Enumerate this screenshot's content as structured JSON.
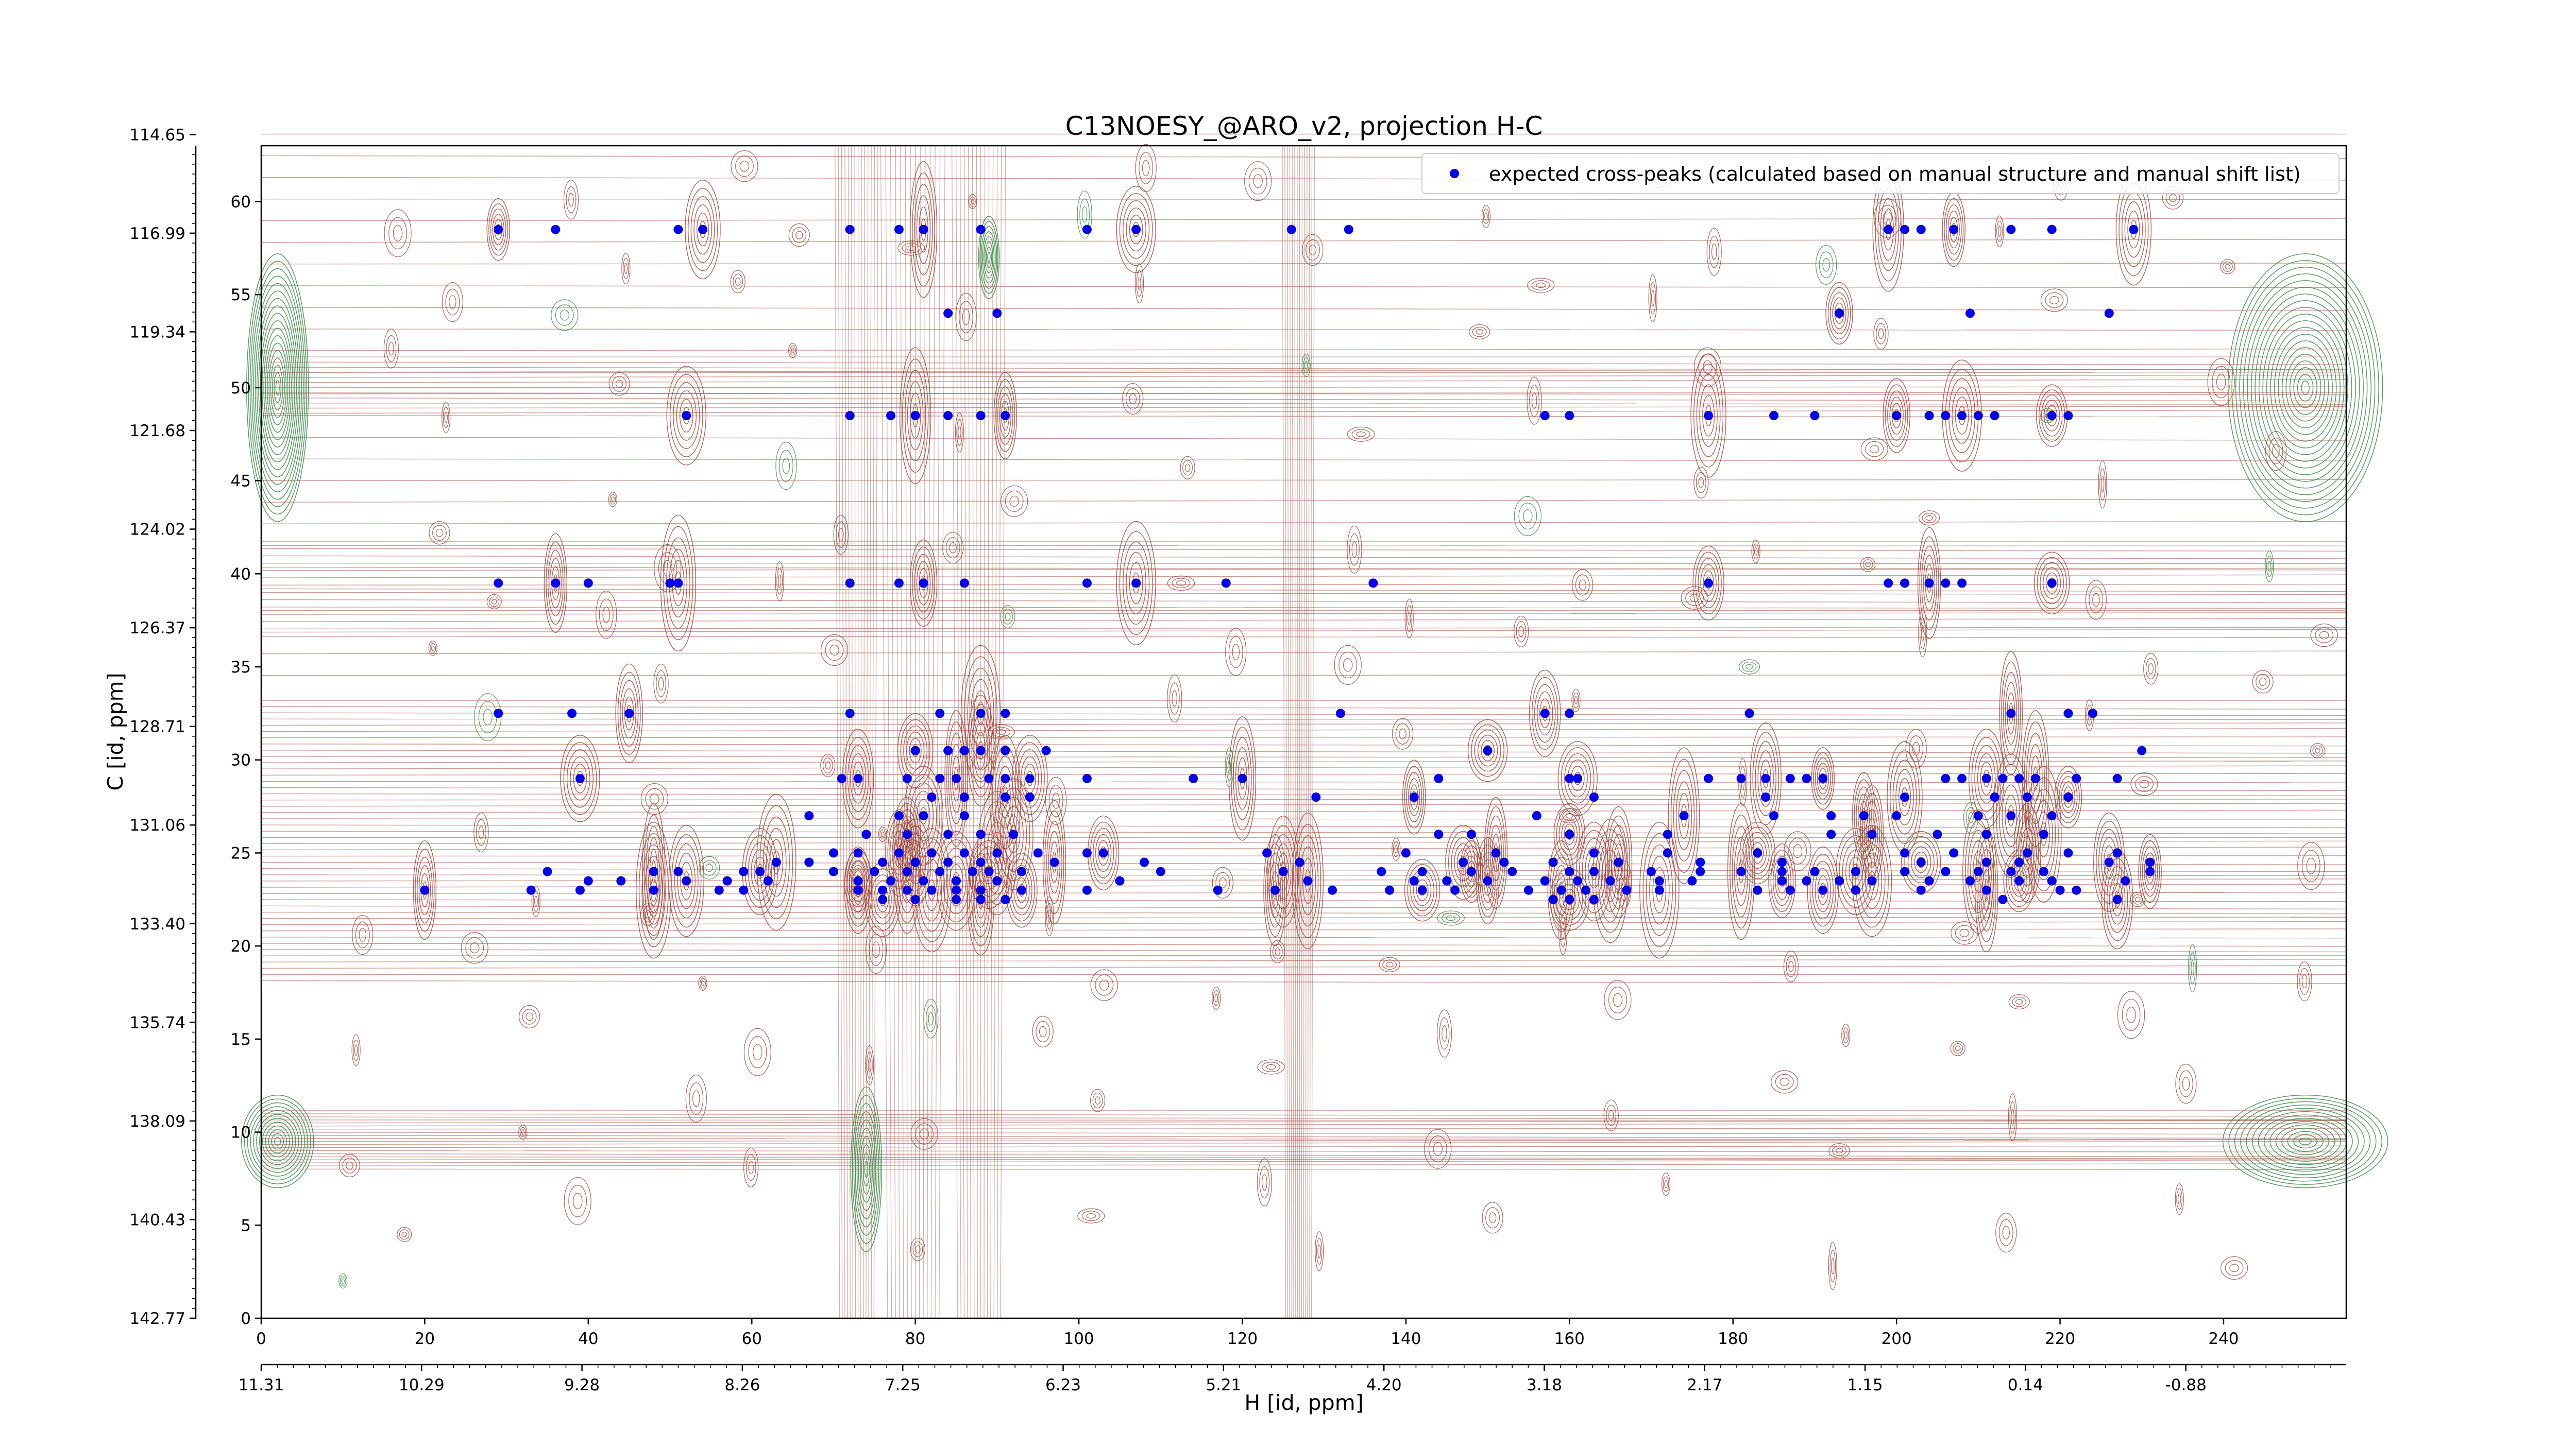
{
  "chart_data": {
    "type": "scatter",
    "title": "C13NOESY_@ARO_v2, projection H-C",
    "xlabel": "H [id, ppm]",
    "ylabel": "C [id, ppm]",
    "xlim": [
      0,
      255
    ],
    "ylim": [
      0,
      63
    ],
    "x_index_ticks": [
      "0",
      "20",
      "40",
      "60",
      "80",
      "100",
      "120",
      "140",
      "160",
      "180",
      "200",
      "220",
      "240"
    ],
    "x_index_tick_values": [
      0,
      20,
      40,
      60,
      80,
      100,
      120,
      140,
      160,
      180,
      200,
      220,
      240
    ],
    "x_ppm_ticks": [
      "11.31",
      "10.29",
      "9.28",
      "8.26",
      "7.25",
      "6.23",
      "5.21",
      "4.20",
      "3.18",
      "2.17",
      "1.15",
      "0.14",
      "-0.88"
    ],
    "y_index_ticks": [
      "0",
      "5",
      "10",
      "15",
      "20",
      "25",
      "30",
      "35",
      "40",
      "45",
      "50",
      "55",
      "60"
    ],
    "y_index_tick_values": [
      0,
      5,
      10,
      15,
      20,
      25,
      30,
      35,
      40,
      45,
      50,
      55,
      60
    ],
    "y_ppm_ticks": [
      "142.77",
      "140.43",
      "138.09",
      "135.74",
      "133.40",
      "131.06",
      "128.71",
      "126.37",
      "124.02",
      "121.68",
      "119.34",
      "116.99",
      "114.65"
    ],
    "y_ppm_tick_values": [
      0,
      5.3,
      10.6,
      15.9,
      21.2,
      26.5,
      31.8,
      37.1,
      42.4,
      47.7,
      53.0,
      58.3,
      63.6
    ],
    "legend": {
      "position": "top-right",
      "entries": [
        "expected cross-peaks (calculated based on manual structure and manual shift list)"
      ]
    },
    "colors": {
      "points": "#0000ee",
      "positive_contours": "#a0453a",
      "negative_contours": "#3a8a48"
    },
    "series": [
      {
        "name": "expected cross-peaks (calculated based on manual structure and manual shift list)",
        "points": [
          [
            29,
            58.5
          ],
          [
            36,
            58.5
          ],
          [
            51,
            58.5
          ],
          [
            54,
            58.5
          ],
          [
            72,
            58.5
          ],
          [
            78,
            58.5
          ],
          [
            81,
            58.5
          ],
          [
            88,
            58.5
          ],
          [
            101,
            58.5
          ],
          [
            107,
            58.5
          ],
          [
            126,
            58.5
          ],
          [
            133,
            58.5
          ],
          [
            199,
            58.5
          ],
          [
            201,
            58.5
          ],
          [
            203,
            58.5
          ],
          [
            207,
            58.5
          ],
          [
            214,
            58.5
          ],
          [
            219,
            58.5
          ],
          [
            229,
            58.5
          ],
          [
            84,
            54
          ],
          [
            90,
            54
          ],
          [
            193,
            54
          ],
          [
            209,
            54
          ],
          [
            226,
            54
          ],
          [
            52,
            48.5
          ],
          [
            72,
            48.5
          ],
          [
            77,
            48.5
          ],
          [
            80,
            48.5
          ],
          [
            84,
            48.5
          ],
          [
            88,
            48.5
          ],
          [
            91,
            48.5
          ],
          [
            157,
            48.5
          ],
          [
            160,
            48.5
          ],
          [
            177,
            48.5
          ],
          [
            185,
            48.5
          ],
          [
            190,
            48.5
          ],
          [
            200,
            48.5
          ],
          [
            204,
            48.5
          ],
          [
            206,
            48.5
          ],
          [
            208,
            48.5
          ],
          [
            210,
            48.5
          ],
          [
            212,
            48.5
          ],
          [
            219,
            48.5
          ],
          [
            221,
            48.5
          ],
          [
            29,
            39.5
          ],
          [
            36,
            39.5
          ],
          [
            40,
            39.5
          ],
          [
            50,
            39.5
          ],
          [
            51,
            39.5
          ],
          [
            72,
            39.5
          ],
          [
            78,
            39.5
          ],
          [
            81,
            39.5
          ],
          [
            86,
            39.5
          ],
          [
            101,
            39.5
          ],
          [
            107,
            39.5
          ],
          [
            118,
            39.5
          ],
          [
            136,
            39.5
          ],
          [
            177,
            39.5
          ],
          [
            199,
            39.5
          ],
          [
            201,
            39.5
          ],
          [
            204,
            39.5
          ],
          [
            206,
            39.5
          ],
          [
            208,
            39.5
          ],
          [
            219,
            39.5
          ],
          [
            29,
            32.5
          ],
          [
            38,
            32.5
          ],
          [
            45,
            32.5
          ],
          [
            72,
            32.5
          ],
          [
            83,
            32.5
          ],
          [
            88,
            32.5
          ],
          [
            91,
            32.5
          ],
          [
            132,
            32.5
          ],
          [
            157,
            32.5
          ],
          [
            160,
            32.5
          ],
          [
            182,
            32.5
          ],
          [
            214,
            32.5
          ],
          [
            221,
            32.5
          ],
          [
            224,
            32.5
          ],
          [
            80,
            30.5
          ],
          [
            84,
            30.5
          ],
          [
            86,
            30.5
          ],
          [
            88,
            30.5
          ],
          [
            91,
            30.5
          ],
          [
            96,
            30.5
          ],
          [
            150,
            30.5
          ],
          [
            230,
            30.5
          ],
          [
            71,
            29
          ],
          [
            73,
            29
          ],
          [
            79,
            29
          ],
          [
            83,
            29
          ],
          [
            85,
            29
          ],
          [
            89,
            29
          ],
          [
            91,
            29
          ],
          [
            94,
            29
          ],
          [
            101,
            29
          ],
          [
            114,
            29
          ],
          [
            120,
            29
          ],
          [
            144,
            29
          ],
          [
            160,
            29
          ],
          [
            161,
            29
          ],
          [
            177,
            29
          ],
          [
            181,
            29
          ],
          [
            184,
            29
          ],
          [
            187,
            29
          ],
          [
            189,
            29
          ],
          [
            191,
            29
          ],
          [
            206,
            29
          ],
          [
            208,
            29
          ],
          [
            211,
            29
          ],
          [
            213,
            29
          ],
          [
            215,
            29
          ],
          [
            217,
            29
          ],
          [
            222,
            29
          ],
          [
            227,
            29
          ],
          [
            39,
            29
          ],
          [
            82,
            28
          ],
          [
            86,
            28
          ],
          [
            91,
            28
          ],
          [
            94,
            28
          ],
          [
            129,
            28
          ],
          [
            141,
            28
          ],
          [
            163,
            28
          ],
          [
            184,
            28
          ],
          [
            201,
            28
          ],
          [
            212,
            28
          ],
          [
            216,
            28
          ],
          [
            221,
            28
          ],
          [
            67,
            27
          ],
          [
            78,
            27
          ],
          [
            81,
            27
          ],
          [
            86,
            27
          ],
          [
            156,
            27
          ],
          [
            174,
            27
          ],
          [
            185,
            27
          ],
          [
            192,
            27
          ],
          [
            196,
            27
          ],
          [
            200,
            27
          ],
          [
            210,
            27
          ],
          [
            214,
            27
          ],
          [
            219,
            27
          ],
          [
            74,
            26
          ],
          [
            79,
            26
          ],
          [
            84,
            26
          ],
          [
            88,
            26
          ],
          [
            92,
            26
          ],
          [
            144,
            26
          ],
          [
            148,
            26
          ],
          [
            160,
            26
          ],
          [
            172,
            26
          ],
          [
            192,
            26
          ],
          [
            197,
            26
          ],
          [
            205,
            26
          ],
          [
            211,
            26
          ],
          [
            218,
            26
          ],
          [
            70,
            25
          ],
          [
            73,
            25
          ],
          [
            78,
            25
          ],
          [
            82,
            25
          ],
          [
            86,
            25
          ],
          [
            90,
            25
          ],
          [
            95,
            25
          ],
          [
            101,
            25
          ],
          [
            103,
            25
          ],
          [
            123,
            25
          ],
          [
            140,
            25
          ],
          [
            151,
            25
          ],
          [
            163,
            25
          ],
          [
            172,
            25
          ],
          [
            183,
            25
          ],
          [
            201,
            25
          ],
          [
            207,
            25
          ],
          [
            216,
            25
          ],
          [
            221,
            25
          ],
          [
            227,
            25
          ],
          [
            63,
            24.5
          ],
          [
            67,
            24.5
          ],
          [
            76,
            24.5
          ],
          [
            80,
            24.5
          ],
          [
            84,
            24.5
          ],
          [
            88,
            24.5
          ],
          [
            97,
            24.5
          ],
          [
            108,
            24.5
          ],
          [
            127,
            24.5
          ],
          [
            147,
            24.5
          ],
          [
            152,
            24.5
          ],
          [
            158,
            24.5
          ],
          [
            166,
            24.5
          ],
          [
            176,
            24.5
          ],
          [
            186,
            24.5
          ],
          [
            203,
            24.5
          ],
          [
            211,
            24.5
          ],
          [
            215,
            24.5
          ],
          [
            226,
            24.5
          ],
          [
            231,
            24.5
          ],
          [
            35,
            24
          ],
          [
            48,
            24
          ],
          [
            51,
            24
          ],
          [
            59,
            24
          ],
          [
            61,
            24
          ],
          [
            70,
            24
          ],
          [
            75,
            24
          ],
          [
            79,
            24
          ],
          [
            83,
            24
          ],
          [
            87,
            24
          ],
          [
            89,
            24
          ],
          [
            93,
            24
          ],
          [
            110,
            24
          ],
          [
            125,
            24
          ],
          [
            137,
            24
          ],
          [
            142,
            24
          ],
          [
            148,
            24
          ],
          [
            153,
            24
          ],
          [
            160,
            24
          ],
          [
            163,
            24
          ],
          [
            170,
            24
          ],
          [
            176,
            24
          ],
          [
            181,
            24
          ],
          [
            186,
            24
          ],
          [
            190,
            24
          ],
          [
            195,
            24
          ],
          [
            201,
            24
          ],
          [
            206,
            24
          ],
          [
            210,
            24
          ],
          [
            214,
            24
          ],
          [
            218,
            24
          ],
          [
            231,
            24
          ],
          [
            40,
            23.5
          ],
          [
            44,
            23.5
          ],
          [
            52,
            23.5
          ],
          [
            57,
            23.5
          ],
          [
            62,
            23.5
          ],
          [
            73,
            23.5
          ],
          [
            77,
            23.5
          ],
          [
            81,
            23.5
          ],
          [
            85,
            23.5
          ],
          [
            90,
            23.5
          ],
          [
            105,
            23.5
          ],
          [
            128,
            23.5
          ],
          [
            141,
            23.5
          ],
          [
            145,
            23.5
          ],
          [
            150,
            23.5
          ],
          [
            157,
            23.5
          ],
          [
            161,
            23.5
          ],
          [
            165,
            23.5
          ],
          [
            171,
            23.5
          ],
          [
            175,
            23.5
          ],
          [
            186,
            23.5
          ],
          [
            189,
            23.5
          ],
          [
            193,
            23.5
          ],
          [
            197,
            23.5
          ],
          [
            204,
            23.5
          ],
          [
            209,
            23.5
          ],
          [
            215,
            23.5
          ],
          [
            219,
            23.5
          ],
          [
            228,
            23.5
          ],
          [
            20,
            23
          ],
          [
            33,
            23
          ],
          [
            39,
            23
          ],
          [
            48,
            23
          ],
          [
            56,
            23
          ],
          [
            59,
            23
          ],
          [
            73,
            23
          ],
          [
            76,
            23
          ],
          [
            79,
            23
          ],
          [
            82,
            23
          ],
          [
            85,
            23
          ],
          [
            88,
            23
          ],
          [
            93,
            23
          ],
          [
            101,
            23
          ],
          [
            117,
            23
          ],
          [
            124,
            23
          ],
          [
            131,
            23
          ],
          [
            138,
            23
          ],
          [
            142,
            23
          ],
          [
            146,
            23
          ],
          [
            155,
            23
          ],
          [
            159,
            23
          ],
          [
            162,
            23
          ],
          [
            167,
            23
          ],
          [
            171,
            23
          ],
          [
            183,
            23
          ],
          [
            187,
            23
          ],
          [
            191,
            23
          ],
          [
            195,
            23
          ],
          [
            203,
            23
          ],
          [
            211,
            23
          ],
          [
            220,
            23
          ],
          [
            222,
            23
          ],
          [
            76,
            22.5
          ],
          [
            80,
            22.5
          ],
          [
            85,
            22.5
          ],
          [
            88,
            22.5
          ],
          [
            91,
            22.5
          ],
          [
            158,
            22.5
          ],
          [
            160,
            22.5
          ],
          [
            163,
            22.5
          ],
          [
            213,
            22.5
          ],
          [
            227,
            22.5
          ]
        ]
      }
    ]
  }
}
